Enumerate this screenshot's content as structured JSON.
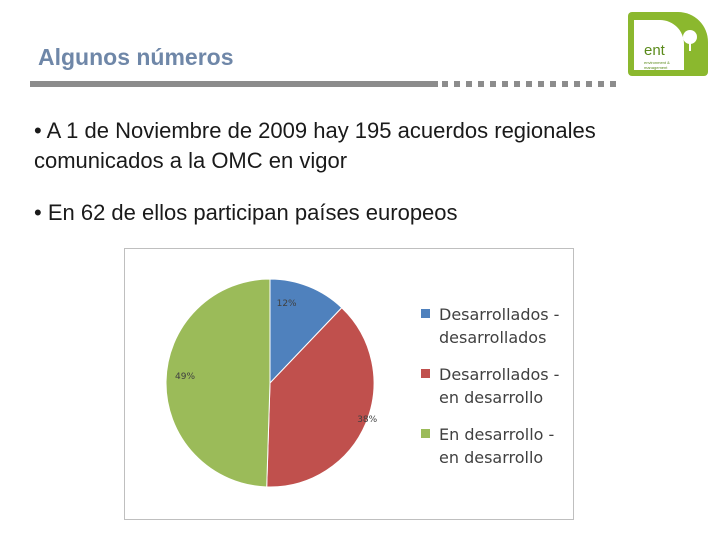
{
  "slide": {
    "title": "Algunos números",
    "bullets": [
      "• A 1 de Noviembre de 2009 hay 195 acuerdos regionales  comunicados a la OMC en vigor",
      "• En 62 de ellos participan países europeos"
    ]
  },
  "logo": {
    "text": "ent",
    "small_text": "environment & management"
  },
  "chart_data": {
    "type": "pie",
    "categories": [
      "Desarrollados - desarrollados",
      "Desarrollados - en desarrollo",
      "En desarrollo - en desarrollo"
    ],
    "values": [
      12,
      38,
      49
    ],
    "labels": [
      "12%",
      "38%",
      "49%"
    ],
    "legend_lines": [
      [
        "Desarrollados -",
        "desarrollados"
      ],
      [
        "Desarrollados -",
        "en desarrollo"
      ],
      [
        "En desarrollo -",
        "en desarrollo"
      ]
    ],
    "colors": [
      "#4f81bd",
      "#c0504d",
      "#9bbb59"
    ],
    "legend_position": "right"
  }
}
